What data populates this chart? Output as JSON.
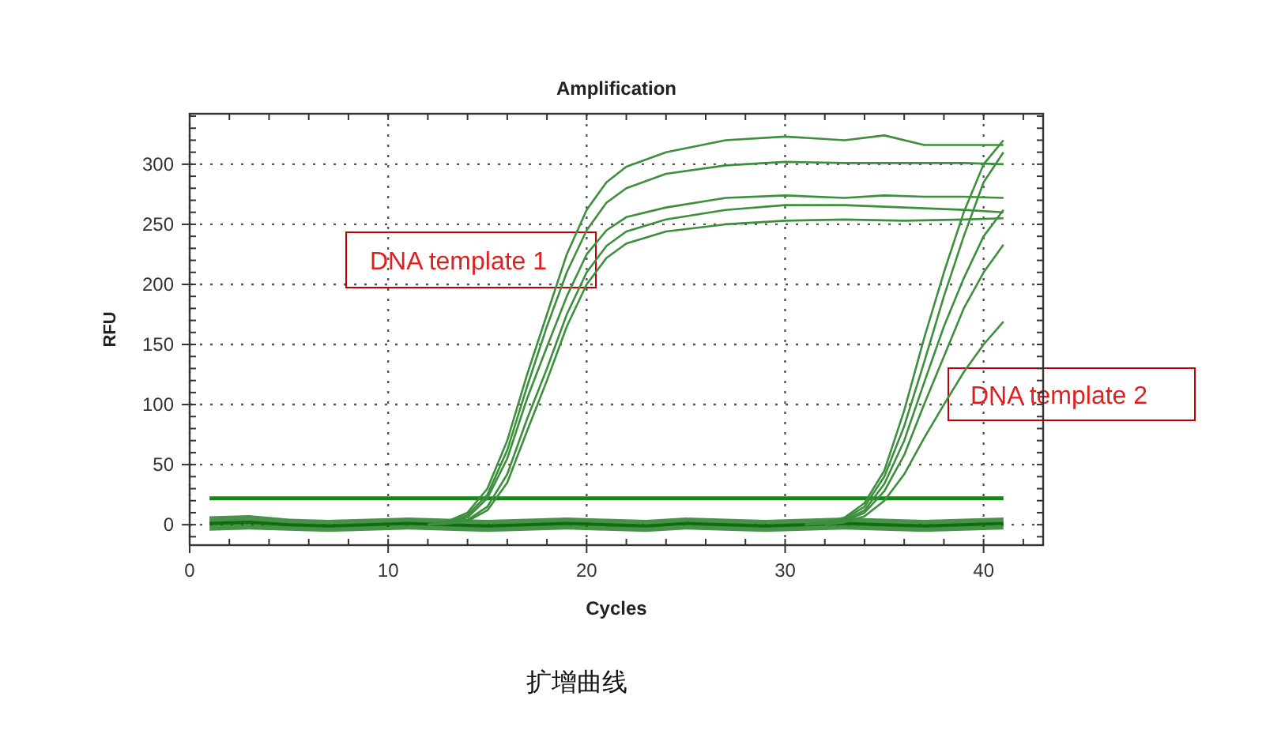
{
  "chart_data": {
    "type": "line",
    "title": "Amplification",
    "xlabel": "Cycles",
    "ylabel": "RFU",
    "xlim": [
      0,
      43
    ],
    "ylim": [
      -17,
      342
    ],
    "xticks": [
      0,
      10,
      20,
      30,
      40
    ],
    "yticks": [
      0,
      50,
      100,
      150,
      200,
      250,
      300
    ],
    "grid": true,
    "line_style": "solid",
    "marker": "none",
    "ref_lines": [
      {
        "axis": "y",
        "value": 22,
        "color": "#178517"
      }
    ],
    "annotations": [
      "DNA template 1",
      "DNA template 2",
      "扩增曲线"
    ],
    "series": [
      {
        "color": "#0d6e0d",
        "x": [
          1,
          3,
          5,
          7,
          9,
          11,
          13,
          15,
          17,
          19,
          21,
          23,
          25,
          27,
          29,
          31,
          33,
          35,
          37,
          39,
          41
        ],
        "values": [
          1,
          2,
          0,
          -1,
          0,
          1,
          0,
          -1,
          0,
          1,
          0,
          -1,
          1,
          0,
          -1,
          0,
          1,
          0,
          -1,
          0,
          1
        ],
        "lower": [
          -5,
          -4,
          -5,
          -6,
          -5,
          -4,
          -5,
          -6,
          -5,
          -4,
          -5,
          -6,
          -4,
          -5,
          -6,
          -5,
          -4,
          -5,
          -6,
          -5,
          -4
        ],
        "upper": [
          7,
          8,
          5,
          4,
          5,
          6,
          5,
          4,
          5,
          6,
          5,
          4,
          6,
          5,
          4,
          5,
          6,
          5,
          4,
          5,
          6
        ]
      },
      {
        "color": "#3c8f3c",
        "x": [
          12,
          13,
          14,
          15,
          16,
          17,
          18,
          19,
          20,
          21,
          22,
          24,
          27,
          30,
          33,
          35,
          37,
          39,
          41
        ],
        "values": [
          0,
          3,
          10,
          30,
          70,
          125,
          175,
          225,
          262,
          285,
          298,
          310,
          320,
          323,
          320,
          324,
          316,
          316,
          316
        ]
      },
      {
        "color": "#3c8f3c",
        "x": [
          12,
          13,
          14,
          15,
          16,
          17,
          18,
          19,
          20,
          21,
          22,
          24,
          27,
          30,
          33,
          36,
          39,
          41
        ],
        "values": [
          0,
          2,
          8,
          25,
          62,
          115,
          165,
          210,
          245,
          268,
          280,
          292,
          299,
          302,
          301,
          301,
          301,
          300
        ]
      },
      {
        "color": "#3c8f3c",
        "x": [
          12,
          13,
          14,
          15,
          16,
          17,
          18,
          19,
          20,
          21,
          22,
          24,
          27,
          30,
          33,
          35,
          37,
          39,
          41
        ],
        "values": [
          0,
          2,
          6,
          22,
          55,
          105,
          148,
          190,
          225,
          245,
          256,
          264,
          272,
          274,
          272,
          274,
          273,
          273,
          272
        ]
      },
      {
        "color": "#3c8f3c",
        "x": [
          12,
          13,
          14,
          15,
          16,
          17,
          18,
          19,
          20,
          21,
          22,
          24,
          27,
          30,
          33,
          36,
          39,
          41
        ],
        "values": [
          0,
          1,
          4,
          15,
          42,
          88,
          130,
          175,
          210,
          232,
          244,
          254,
          262,
          266,
          266,
          264,
          262,
          260
        ]
      },
      {
        "color": "#3c8f3c",
        "x": [
          12,
          13,
          14,
          15,
          16,
          17,
          18,
          19,
          20,
          21,
          22,
          24,
          27,
          30,
          33,
          36,
          39,
          41
        ],
        "values": [
          0,
          1,
          3,
          12,
          35,
          78,
          120,
          165,
          200,
          222,
          234,
          244,
          250,
          253,
          254,
          253,
          254,
          255
        ]
      },
      {
        "color": "#3c8f3c",
        "x": [
          31,
          32,
          33,
          34,
          35,
          36,
          37,
          38,
          39,
          40,
          41
        ],
        "values": [
          0,
          2,
          6,
          18,
          45,
          95,
          155,
          210,
          260,
          300,
          320
        ]
      },
      {
        "color": "#3c8f3c",
        "x": [
          31,
          32,
          33,
          34,
          35,
          36,
          37,
          38,
          39,
          40,
          41
        ],
        "values": [
          0,
          1,
          5,
          15,
          40,
          82,
          135,
          190,
          240,
          285,
          310
        ]
      },
      {
        "color": "#3c8f3c",
        "x": [
          31,
          32,
          33,
          34,
          35,
          36,
          37,
          38,
          39,
          40,
          41
        ],
        "values": [
          0,
          1,
          4,
          12,
          34,
          70,
          118,
          165,
          205,
          240,
          262
        ]
      },
      {
        "color": "#3c8f3c",
        "x": [
          32,
          33,
          34,
          35,
          36,
          37,
          38,
          39,
          40,
          41
        ],
        "values": [
          0,
          3,
          10,
          28,
          58,
          100,
          140,
          180,
          210,
          233
        ]
      },
      {
        "color": "#3c8f3c",
        "x": [
          32,
          33,
          34,
          35,
          36,
          37,
          38,
          39,
          40,
          41
        ],
        "values": [
          0,
          2,
          7,
          20,
          42,
          72,
          100,
          127,
          150,
          169
        ]
      }
    ]
  }
}
